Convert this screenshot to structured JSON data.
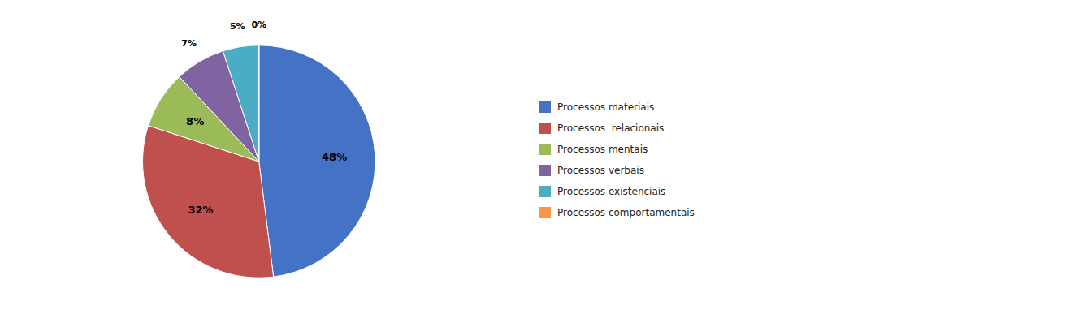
{
  "chart_data": {
    "type": "pie",
    "categories": [
      "Processos materiais",
      "Processos  relacionais",
      "Processos mentais",
      "Processos verbais",
      "Processos existenciais",
      "Processos comportamentais"
    ],
    "values": [
      48,
      32,
      8,
      7,
      5,
      0
    ],
    "value_labels": [
      "48%",
      "32%",
      "8%",
      "7%",
      "5%",
      "0%"
    ],
    "colors": [
      "#4472C4",
      "#C0504D",
      "#9BBB59",
      "#8064A2",
      "#4BACC6",
      "#F79646"
    ],
    "data_labels": true,
    "legend": "right"
  }
}
